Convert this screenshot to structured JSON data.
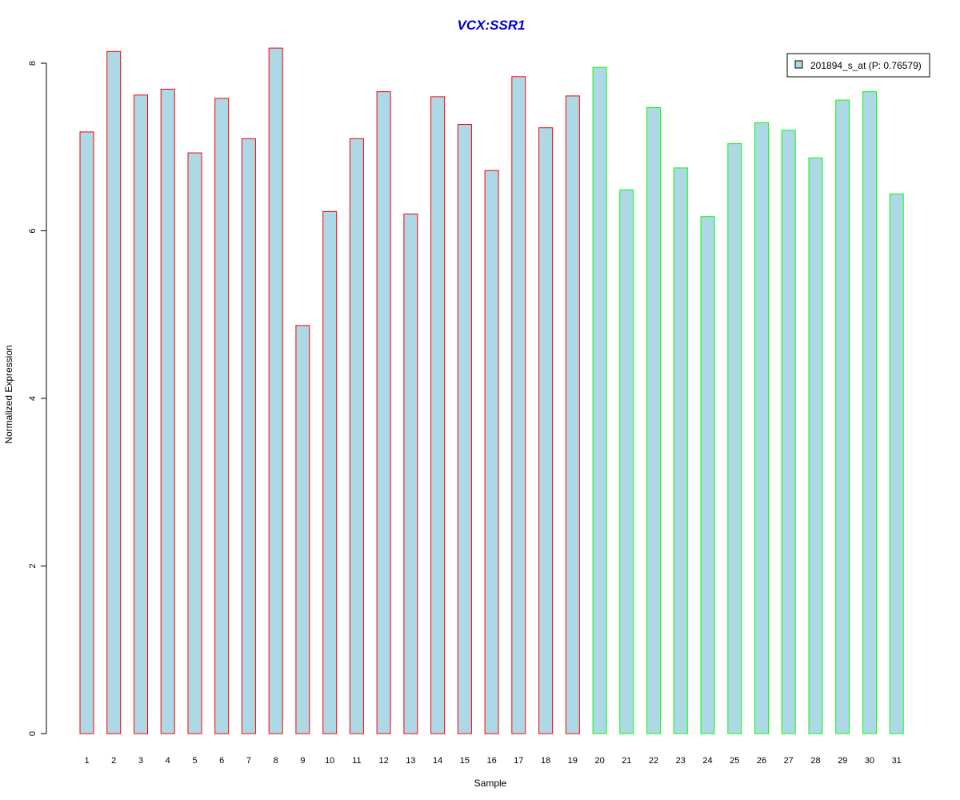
{
  "chart_data": {
    "type": "bar",
    "title": "VCX:SSR1",
    "xlabel": "Sample",
    "ylabel": "Normalized Expression",
    "categories": [
      "1",
      "2",
      "3",
      "4",
      "5",
      "6",
      "7",
      "8",
      "9",
      "10",
      "11",
      "12",
      "13",
      "14",
      "15",
      "16",
      "17",
      "18",
      "19",
      "20",
      "21",
      "22",
      "23",
      "24",
      "25",
      "26",
      "27",
      "28",
      "29",
      "30",
      "31"
    ],
    "values": [
      7.18,
      8.14,
      7.62,
      7.69,
      6.93,
      7.58,
      7.1,
      8.18,
      4.87,
      6.23,
      7.1,
      7.66,
      6.2,
      7.6,
      7.27,
      6.72,
      7.84,
      7.23,
      7.61,
      7.95,
      6.49,
      7.47,
      6.75,
      6.17,
      7.04,
      7.29,
      7.2,
      6.87,
      7.56,
      7.66,
      6.44
    ],
    "groups": [
      "red",
      "red",
      "red",
      "red",
      "red",
      "red",
      "red",
      "red",
      "red",
      "red",
      "red",
      "red",
      "red",
      "red",
      "red",
      "red",
      "red",
      "red",
      "red",
      "green",
      "green",
      "green",
      "green",
      "green",
      "green",
      "green",
      "green",
      "green",
      "green",
      "green",
      "green"
    ],
    "ylim": [
      0,
      8
    ],
    "yticks": [
      0,
      2,
      4,
      6,
      8
    ],
    "grid": false,
    "legend": {
      "position": "top-right",
      "entries": [
        {
          "label": "201894_s_at (P: 0.76579)",
          "color": "#add8e6"
        }
      ]
    },
    "colors": {
      "title": "#0000cc",
      "bar_fill": "#add8e6",
      "border_red": "#ff0000",
      "border_green": "#00ff00",
      "axis": "#000000"
    }
  }
}
